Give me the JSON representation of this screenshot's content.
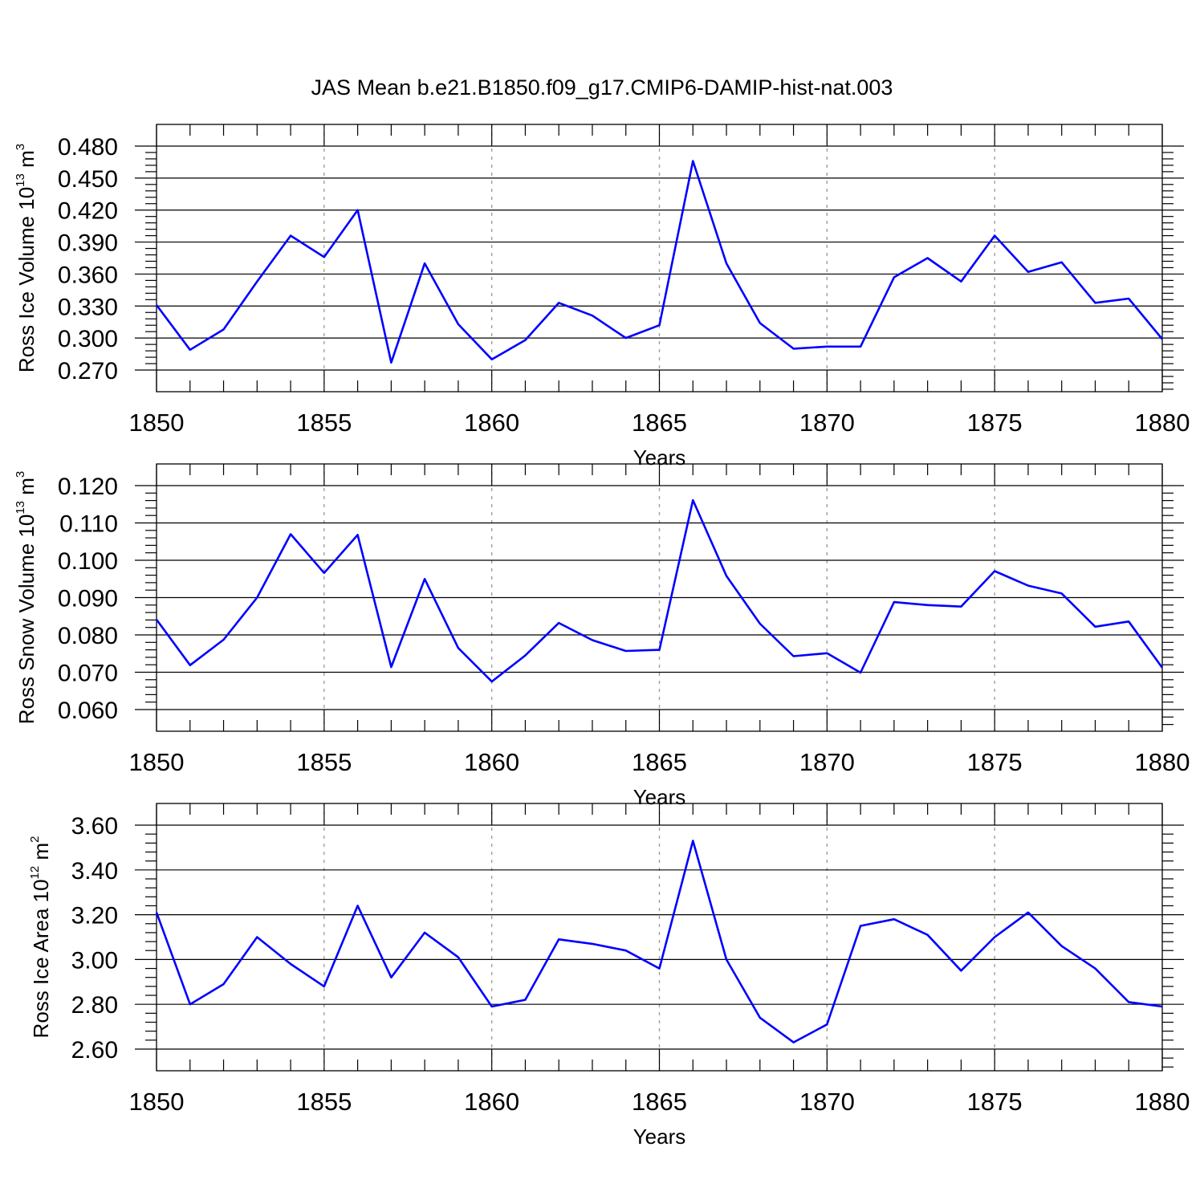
{
  "page": {
    "title": "JAS Mean b.e21.B1850.f09_g17.CMIP6-DAMIP-hist-nat.003"
  },
  "chart_data": [
    {
      "type": "line",
      "xlabel": "Years",
      "ylabel": {
        "prefix": "Ross Ice Volume 10",
        "exp": "13",
        "unit": " m",
        "unit_exp": "3"
      },
      "xlim": [
        1850,
        1880
      ],
      "ylim": [
        0.27,
        0.48
      ],
      "xticks": [
        1850,
        1855,
        1860,
        1865,
        1870,
        1875,
        1880
      ],
      "xtick_labels": [
        "1850",
        "1855",
        "1860",
        "1865",
        "1870",
        "1875",
        "1880"
      ],
      "yticks": [
        0.27,
        0.3,
        0.33,
        0.36,
        0.39,
        0.42,
        0.45,
        0.48
      ],
      "ytick_labels": [
        "0.270",
        "0.300",
        "0.330",
        "0.360",
        "0.390",
        "0.420",
        "0.450",
        "0.480"
      ],
      "grid": "vertical dashed at major x ticks",
      "color": "#0000ff",
      "x": [
        1850,
        1851,
        1852,
        1853,
        1854,
        1855,
        1856,
        1857,
        1858,
        1859,
        1860,
        1861,
        1862,
        1863,
        1864,
        1865,
        1866,
        1867,
        1868,
        1869,
        1870,
        1871,
        1872,
        1873,
        1874,
        1875,
        1876,
        1877,
        1878,
        1879,
        1880
      ],
      "y": [
        0.331,
        0.289,
        0.308,
        0.353,
        0.396,
        0.376,
        0.42,
        0.277,
        0.37,
        0.313,
        0.28,
        0.298,
        0.333,
        0.321,
        0.3,
        0.312,
        0.466,
        0.37,
        0.314,
        0.29,
        0.292,
        0.292,
        0.357,
        0.375,
        0.353,
        0.396,
        0.362,
        0.371,
        0.333,
        0.337,
        0.299
      ]
    },
    {
      "type": "line",
      "xlabel": "Years",
      "ylabel": {
        "prefix": "Ross Snow Volume 10",
        "exp": "13",
        "unit": " m",
        "unit_exp": "3"
      },
      "xlim": [
        1850,
        1880
      ],
      "ylim": [
        0.06,
        0.12
      ],
      "xticks": [
        1850,
        1855,
        1860,
        1865,
        1870,
        1875,
        1880
      ],
      "xtick_labels": [
        "1850",
        "1855",
        "1860",
        "1865",
        "1870",
        "1875",
        "1880"
      ],
      "yticks": [
        0.06,
        0.07,
        0.08,
        0.09,
        0.1,
        0.11,
        0.12
      ],
      "ytick_labels": [
        "0.060",
        "0.070",
        "0.080",
        "0.090",
        "0.100",
        "0.110",
        "0.120"
      ],
      "grid": "vertical dashed at major x ticks",
      "color": "#0000ff",
      "x": [
        1850,
        1851,
        1852,
        1853,
        1854,
        1855,
        1856,
        1857,
        1858,
        1859,
        1860,
        1861,
        1862,
        1863,
        1864,
        1865,
        1866,
        1867,
        1868,
        1869,
        1870,
        1871,
        1872,
        1873,
        1874,
        1875,
        1876,
        1877,
        1878,
        1879,
        1880
      ],
      "y": [
        0.0841,
        0.0719,
        0.0787,
        0.09,
        0.107,
        0.0966,
        0.1068,
        0.0714,
        0.095,
        0.0765,
        0.0675,
        0.0745,
        0.0832,
        0.0786,
        0.0757,
        0.076,
        0.1161,
        0.0958,
        0.083,
        0.0743,
        0.0751,
        0.0699,
        0.0888,
        0.088,
        0.0876,
        0.0971,
        0.0932,
        0.0911,
        0.0822,
        0.0836,
        0.0712
      ]
    },
    {
      "type": "line",
      "xlabel": "Years",
      "ylabel": {
        "prefix": "Ross Ice Area 10",
        "exp": "12",
        "unit": " m",
        "unit_exp": "2"
      },
      "xlim": [
        1850,
        1880
      ],
      "ylim": [
        2.6,
        3.6
      ],
      "xticks": [
        1850,
        1855,
        1860,
        1865,
        1870,
        1875,
        1880
      ],
      "xtick_labels": [
        "1850",
        "1855",
        "1860",
        "1865",
        "1870",
        "1875",
        "1880"
      ],
      "yticks": [
        2.6,
        2.8,
        3.0,
        3.2,
        3.4,
        3.6
      ],
      "ytick_labels": [
        "2.60",
        "2.80",
        "3.00",
        "3.20",
        "3.40",
        "3.60"
      ],
      "grid": "vertical dashed at major x ticks",
      "color": "#0000ff",
      "x": [
        1850,
        1851,
        1852,
        1853,
        1854,
        1855,
        1856,
        1857,
        1858,
        1859,
        1860,
        1861,
        1862,
        1863,
        1864,
        1865,
        1866,
        1867,
        1868,
        1869,
        1870,
        1871,
        1872,
        1873,
        1874,
        1875,
        1876,
        1877,
        1878,
        1879,
        1880
      ],
      "y": [
        3.21,
        2.8,
        2.89,
        3.1,
        2.98,
        2.88,
        3.24,
        2.92,
        3.12,
        3.01,
        2.79,
        2.82,
        3.09,
        3.07,
        3.04,
        2.96,
        3.53,
        3.0,
        2.74,
        2.63,
        2.71,
        3.15,
        3.18,
        3.11,
        2.95,
        3.1,
        3.21,
        3.06,
        2.96,
        2.81,
        2.79
      ]
    }
  ]
}
